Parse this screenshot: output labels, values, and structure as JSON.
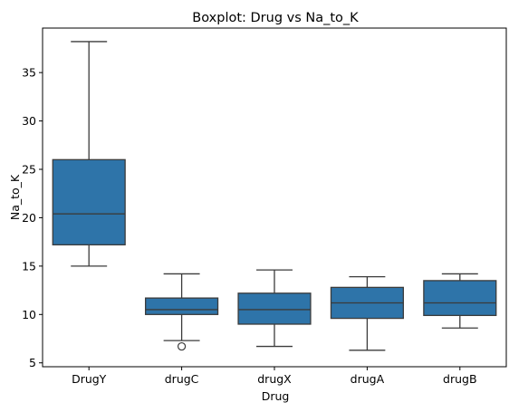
{
  "chart_data": {
    "type": "box",
    "title": "Boxplot: Drug vs Na_to_K",
    "xlabel": "Drug",
    "ylabel": "Na_to_K",
    "ylim": [
      4.6,
      39.6
    ],
    "yticks": [
      5,
      10,
      15,
      20,
      25,
      30,
      35
    ],
    "grid": false,
    "box_color": "#2e74a9",
    "line_color": "#3b3b3b",
    "categories": [
      "DrugY",
      "drugC",
      "drugX",
      "drugA",
      "drugB"
    ],
    "boxes": [
      {
        "category": "DrugY",
        "whisker_low": 15.0,
        "q1": 17.2,
        "median": 20.4,
        "q3": 26.0,
        "whisker_high": 38.2,
        "outliers": []
      },
      {
        "category": "drugC",
        "whisker_low": 7.3,
        "q1": 10.0,
        "median": 10.5,
        "q3": 11.7,
        "whisker_high": 14.2,
        "outliers": [
          6.7
        ]
      },
      {
        "category": "drugX",
        "whisker_low": 6.7,
        "q1": 9.0,
        "median": 10.5,
        "q3": 12.2,
        "whisker_high": 14.6,
        "outliers": []
      },
      {
        "category": "drugA",
        "whisker_low": 6.3,
        "q1": 9.6,
        "median": 11.2,
        "q3": 12.8,
        "whisker_high": 13.9,
        "outliers": []
      },
      {
        "category": "drugB",
        "whisker_low": 8.6,
        "q1": 9.9,
        "median": 11.2,
        "q3": 13.5,
        "whisker_high": 14.2,
        "outliers": []
      }
    ]
  }
}
